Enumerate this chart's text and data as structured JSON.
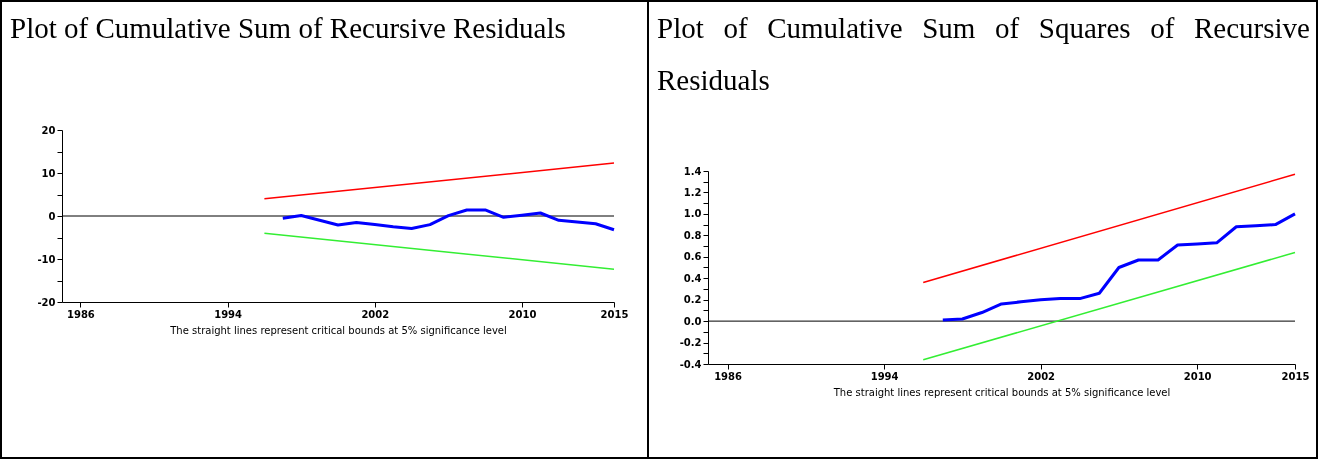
{
  "chart_data": [
    {
      "type": "line",
      "title": "Plot of Cumulative Sum of Recursive Residuals",
      "annotations": [
        "The straight lines represent critical bounds at 5% significance level"
      ],
      "xlim": [
        1985,
        2015
      ],
      "xticks": [
        1986,
        1994,
        2002,
        2010,
        2015
      ],
      "ylim": [
        -20,
        20
      ],
      "yticks": [
        -20,
        {
          "value": -15,
          "label": null
        },
        -10,
        {
          "value": -5,
          "label": null
        },
        0,
        {
          "value": 5,
          "label": null
        },
        10,
        {
          "value": 15,
          "label": null
        },
        20
      ],
      "grid": false,
      "ref_lines": [
        {
          "axis": "y",
          "value": 0,
          "color": "#000000"
        }
      ],
      "series": [
        {
          "color": "#ff0000",
          "x": [
            1996,
            2015
          ],
          "values": [
            4,
            12.3
          ]
        },
        {
          "color": "#33ee33",
          "x": [
            1996,
            2015
          ],
          "values": [
            -4,
            -12.4
          ]
        },
        {
          "color": "#0000ff",
          "x": [
            1997,
            1998,
            1999,
            2000,
            2001,
            2002,
            2003,
            2004,
            2005,
            2006,
            2007,
            2008,
            2009,
            2010,
            2011,
            2012,
            2013,
            2014,
            2015
          ],
          "values": [
            -0.5,
            0.1,
            -1,
            -2.1,
            -1.5,
            -2,
            -2.5,
            -2.9,
            -2,
            0.1,
            1.4,
            1.4,
            -0.3,
            0.2,
            0.7,
            -1,
            -1.4,
            -1.8,
            -3.2
          ]
        }
      ]
    },
    {
      "type": "line",
      "title": "Plot of Cumulative Sum of Squares of Recursive Residuals",
      "annotations": [
        "The straight lines represent critical bounds at 5% significance level"
      ],
      "xlim": [
        1985,
        2015
      ],
      "xticks": [
        1986,
        1994,
        2002,
        2010,
        2015
      ],
      "ylim": [
        -0.4,
        1.4
      ],
      "yticks": [
        {
          "value": -0.4,
          "label": "-0.4"
        },
        {
          "value": -0.3,
          "label": null
        },
        {
          "value": -0.2,
          "label": "-0.2"
        },
        {
          "value": -0.1,
          "label": null
        },
        {
          "value": 0,
          "label": "0.0"
        },
        {
          "value": 0.1,
          "label": null
        },
        {
          "value": 0.2,
          "label": "0.2"
        },
        {
          "value": 0.3,
          "label": null
        },
        {
          "value": 0.4,
          "label": "0.4"
        },
        {
          "value": 0.5,
          "label": null
        },
        {
          "value": 0.6,
          "label": "0.6"
        },
        {
          "value": 0.7,
          "label": null
        },
        {
          "value": 0.8,
          "label": "0.8"
        },
        {
          "value": 0.9,
          "label": null
        },
        {
          "value": 1.0,
          "label": "1.0"
        },
        {
          "value": 1.1,
          "label": null
        },
        {
          "value": 1.2,
          "label": "1.2"
        },
        {
          "value": 1.3,
          "label": null
        },
        {
          "value": 1.4,
          "label": "1.4"
        }
      ],
      "grid": false,
      "ref_lines": [
        {
          "axis": "y",
          "value": 0,
          "color": "#000000"
        }
      ],
      "series": [
        {
          "color": "#ff0000",
          "x": [
            1996,
            2015
          ],
          "values": [
            0.36,
            1.37
          ]
        },
        {
          "color": "#33ee33",
          "x": [
            1996,
            2015
          ],
          "values": [
            -0.36,
            0.64
          ]
        },
        {
          "color": "#0000ff",
          "x": [
            1997,
            1998,
            1999,
            2000,
            2001,
            2002,
            2003,
            2004,
            2005,
            2006,
            2007,
            2008,
            2009,
            2010,
            2011,
            2012,
            2013,
            2014,
            2015
          ],
          "values": [
            0.01,
            0.02,
            0.08,
            0.16,
            0.18,
            0.2,
            0.21,
            0.21,
            0.26,
            0.5,
            0.57,
            0.57,
            0.71,
            0.72,
            0.73,
            0.88,
            0.89,
            0.9,
            1.0
          ]
        }
      ]
    }
  ]
}
